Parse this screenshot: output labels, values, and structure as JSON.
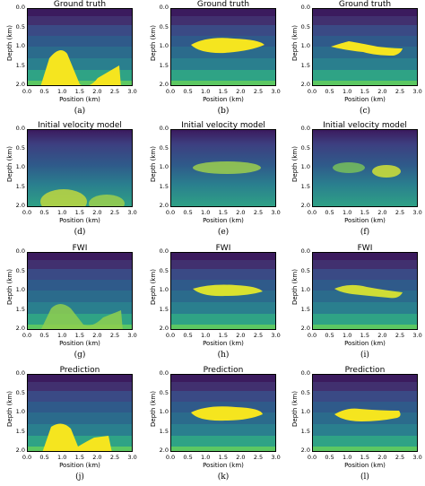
{
  "axis": {
    "xlabel": "Position (km)",
    "ylabel": "Depth (km)",
    "xticks": [
      "0.0",
      "0.5",
      "1.0",
      "1.5",
      "2.0",
      "2.5",
      "3.0"
    ],
    "yticks": [
      "0.0",
      "0.5",
      "1.0",
      "1.5",
      "2.0"
    ]
  },
  "rows": [
    {
      "title": "Ground truth",
      "captions": [
        "(a)",
        "(b)",
        "(c)"
      ]
    },
    {
      "title": "Initial velocity model",
      "captions": [
        "(d)",
        "(e)",
        "(f)"
      ]
    },
    {
      "title": "FWI",
      "captions": [
        "(g)",
        "(h)",
        "(i)"
      ]
    },
    {
      "title": "Prediction",
      "captions": [
        "(j)",
        "(k)",
        "(l)"
      ]
    }
  ],
  "colors": {
    "dark": "#3b1b5e",
    "deep_blue": "#2f5a8a",
    "teal": "#2a7f8e",
    "green": "#2fa385",
    "light_green": "#5cc862",
    "yellow": "#f5e51f"
  }
}
